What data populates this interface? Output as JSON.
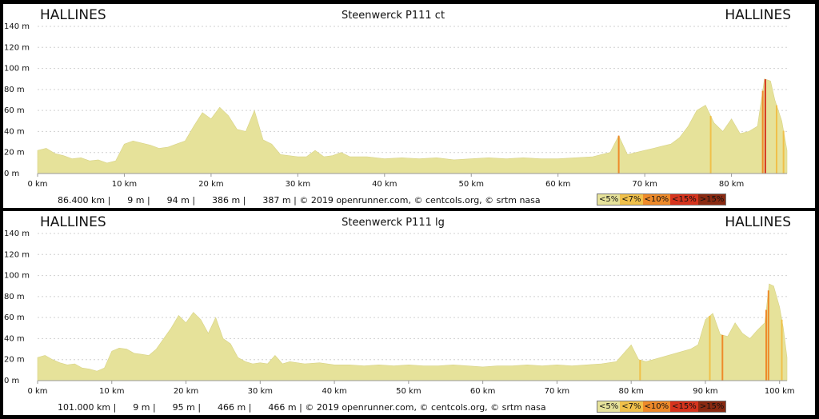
{
  "colors": {
    "lt5": "#e6e29a",
    "lt7": "#f0c04a",
    "lt10": "#ee8a2a",
    "lt15": "#d6341e",
    "gt15": "#8a2a12"
  },
  "chart_data": [
    {
      "type": "area",
      "title": "Steenwerck P111 ct",
      "start_label": "HALLINES",
      "end_label": "HALLINES",
      "xlabel": "",
      "ylabel": "",
      "xlim": [
        0,
        86.4
      ],
      "ylim": [
        0,
        140
      ],
      "x_ticks": [
        0,
        10,
        20,
        30,
        40,
        50,
        60,
        70,
        80
      ],
      "x_tick_labels": [
        "0 km",
        "10 km",
        "20 km",
        "30 km",
        "40 km",
        "50 km",
        "60 km",
        "70 km",
        "80 km"
      ],
      "y_ticks": [
        0,
        20,
        40,
        60,
        80,
        100,
        120,
        140
      ],
      "y_tick_labels": [
        "0 m",
        "20 m",
        "40 m",
        "60 m",
        "80 m",
        "100 m",
        "120 m",
        "140 m"
      ],
      "grid": true,
      "stats": "86.400 km |      9 m |      94 m |      386 m |      387 m | © 2019 openrunner.com, © centcols.org, © srtm nasa",
      "legend": [
        "<5%",
        "<7%",
        "<10%",
        "<15%",
        ">15%"
      ],
      "x": [
        0,
        1,
        2,
        3,
        4,
        5,
        6,
        7,
        8,
        9,
        10,
        11,
        12,
        13,
        14,
        15,
        16,
        17,
        18,
        19,
        20,
        21,
        22,
        23,
        24,
        25,
        26,
        27,
        28,
        29,
        30,
        31,
        32,
        33,
        34,
        35,
        36,
        38,
        40,
        42,
        44,
        46,
        48,
        50,
        52,
        54,
        56,
        58,
        60,
        62,
        64,
        65,
        66,
        67,
        68,
        69,
        70,
        71,
        72,
        73,
        74,
        75,
        76,
        77,
        78,
        79,
        80,
        81,
        82,
        83,
        83.8,
        84.5,
        85,
        85.8,
        86.4
      ],
      "y": [
        22,
        24,
        19,
        17,
        14,
        15,
        12,
        13,
        10,
        12,
        28,
        31,
        29,
        27,
        24,
        25,
        28,
        31,
        45,
        58,
        52,
        63,
        55,
        42,
        40,
        60,
        32,
        28,
        18,
        17,
        16,
        16,
        22,
        16,
        17,
        20,
        16,
        16,
        14,
        15,
        14,
        15,
        13,
        14,
        15,
        14,
        15,
        14,
        14,
        15,
        16,
        18,
        20,
        36,
        18,
        20,
        22,
        24,
        26,
        28,
        34,
        45,
        60,
        65,
        48,
        40,
        52,
        38,
        40,
        45,
        90,
        88,
        70,
        50,
        22
      ],
      "steep_segments": [
        {
          "x": 67,
          "grade": "lt10"
        },
        {
          "x": 77.6,
          "grade": "lt7"
        },
        {
          "x": 83.6,
          "grade": "lt10"
        },
        {
          "x": 83.9,
          "grade": "lt15"
        },
        {
          "x": 85.2,
          "grade": "lt7"
        },
        {
          "x": 86.0,
          "grade": "lt7"
        }
      ]
    },
    {
      "type": "area",
      "title": "Steenwerck P111 lg",
      "start_label": "HALLINES",
      "end_label": "HALLINES",
      "xlabel": "",
      "ylabel": "",
      "xlim": [
        0,
        101
      ],
      "ylim": [
        0,
        140
      ],
      "x_ticks": [
        0,
        10,
        20,
        30,
        40,
        50,
        60,
        70,
        80,
        90,
        100
      ],
      "x_tick_labels": [
        "0 km",
        "10 km",
        "20 km",
        "30 km",
        "40 km",
        "50 km",
        "60 km",
        "70 km",
        "80 km",
        "90 km",
        "100 km"
      ],
      "y_ticks": [
        0,
        20,
        40,
        60,
        80,
        100,
        120,
        140
      ],
      "y_tick_labels": [
        "0 m",
        "20 m",
        "40 m",
        "60 m",
        "80 m",
        "100 m",
        "120 m",
        "140 m"
      ],
      "grid": true,
      "stats": "101.000 km |      9 m |      95 m |      466 m |      466 m | © 2019 openrunner.com, © centcols.org, © srtm nasa",
      "legend": [
        "<5%",
        "<7%",
        "<10%",
        "<15%",
        ">15%"
      ],
      "x": [
        0,
        1,
        2,
        3,
        4,
        5,
        6,
        7,
        8,
        9,
        10,
        11,
        12,
        13,
        14,
        15,
        16,
        17,
        18,
        19,
        20,
        21,
        22,
        23,
        24,
        25,
        26,
        27,
        28,
        29,
        30,
        31,
        32,
        33,
        34,
        36,
        38,
        40,
        42,
        44,
        46,
        48,
        50,
        52,
        54,
        56,
        58,
        60,
        62,
        64,
        66,
        68,
        70,
        72,
        74,
        76,
        78,
        80,
        81,
        82,
        84,
        86,
        88,
        89,
        90,
        91,
        92,
        93,
        94,
        95,
        96,
        97,
        98,
        98.6,
        99.2,
        100,
        100.5,
        101
      ],
      "y": [
        22,
        24,
        20,
        17,
        15,
        16,
        12,
        11,
        9,
        12,
        28,
        31,
        30,
        26,
        25,
        24,
        30,
        40,
        50,
        62,
        55,
        65,
        58,
        45,
        60,
        40,
        35,
        22,
        18,
        16,
        17,
        16,
        24,
        16,
        18,
        16,
        17,
        15,
        15,
        14,
        15,
        14,
        15,
        14,
        14,
        15,
        14,
        13,
        14,
        14,
        15,
        14,
        15,
        14,
        15,
        16,
        18,
        34,
        20,
        18,
        22,
        26,
        30,
        34,
        58,
        64,
        44,
        42,
        55,
        45,
        40,
        48,
        55,
        92,
        90,
        70,
        50,
        22
      ],
      "steep_segments": [
        {
          "x": 81.2,
          "grade": "lt7"
        },
        {
          "x": 90.6,
          "grade": "lt7"
        },
        {
          "x": 92.3,
          "grade": "lt10"
        },
        {
          "x": 98.2,
          "grade": "lt10"
        },
        {
          "x": 98.5,
          "grade": "lt10"
        },
        {
          "x": 100.3,
          "grade": "lt7"
        }
      ]
    }
  ]
}
